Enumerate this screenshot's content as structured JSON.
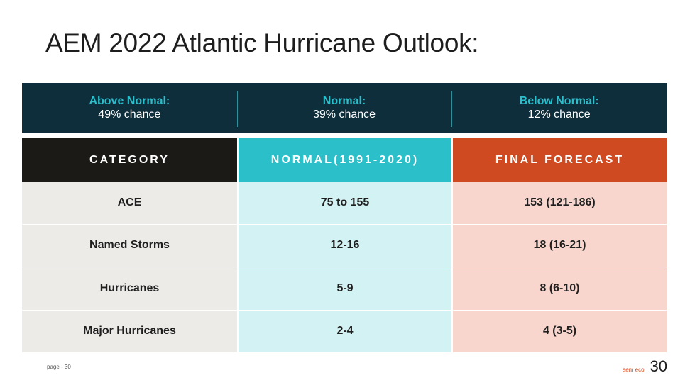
{
  "title": "AEM 2022 Atlantic Hurricane Outlook:",
  "banner": [
    {
      "label": "Above Normal:",
      "value": "49% chance"
    },
    {
      "label": "Normal:",
      "value": "39% chance"
    },
    {
      "label": "Below Normal:",
      "value": "12% chance"
    }
  ],
  "table": {
    "headers": [
      "CATEGORY",
      "NORMAL(1991-2020)",
      "FINAL FORECAST"
    ],
    "rows": [
      [
        "ACE",
        "75 to 155",
        "153 (121-186)"
      ],
      [
        "Named Storms",
        "12-16",
        "18 (16-21)"
      ],
      [
        "Hurricanes",
        "5-9",
        "8 (6-10)"
      ],
      [
        "Major Hurricanes",
        "2-4",
        "4 (3-5)"
      ]
    ]
  },
  "footer": {
    "page_label": "page - 30",
    "logo": "aem eco",
    "page_number": "30"
  },
  "colors": {
    "banner_bg": "#0f2e3c",
    "accent_teal": "#2bbfc9",
    "accent_orange": "#cf4a21",
    "header_dark": "#1c1a17"
  }
}
